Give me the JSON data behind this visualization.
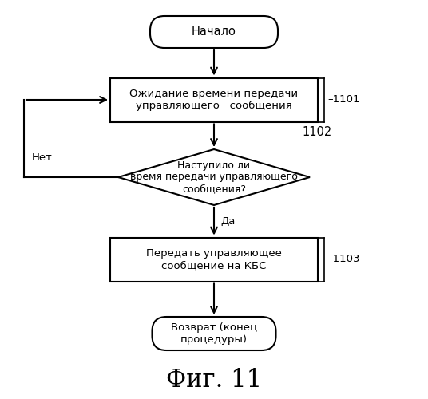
{
  "title": "Фиг. 11",
  "bg_color": "#ffffff",
  "start_text": "Начало",
  "box1_text": "Ожидание времени передачи\nуправляющего   сообщения",
  "box1_label": "–1101",
  "diamond_text": "Наступило ли\nвремя передачи управляющего\nсообщения?",
  "diamond_label": "1102",
  "box2_text": "Передать управляющее\nсообщение на КБС",
  "box2_label": "–1103",
  "end_text": "Возврат (конец\nпроцедуры)",
  "yes_label": "Да",
  "no_label": "Нет",
  "line_color": "#000000",
  "text_color": "#000000",
  "font_size": 9.5,
  "title_font_size": 22
}
